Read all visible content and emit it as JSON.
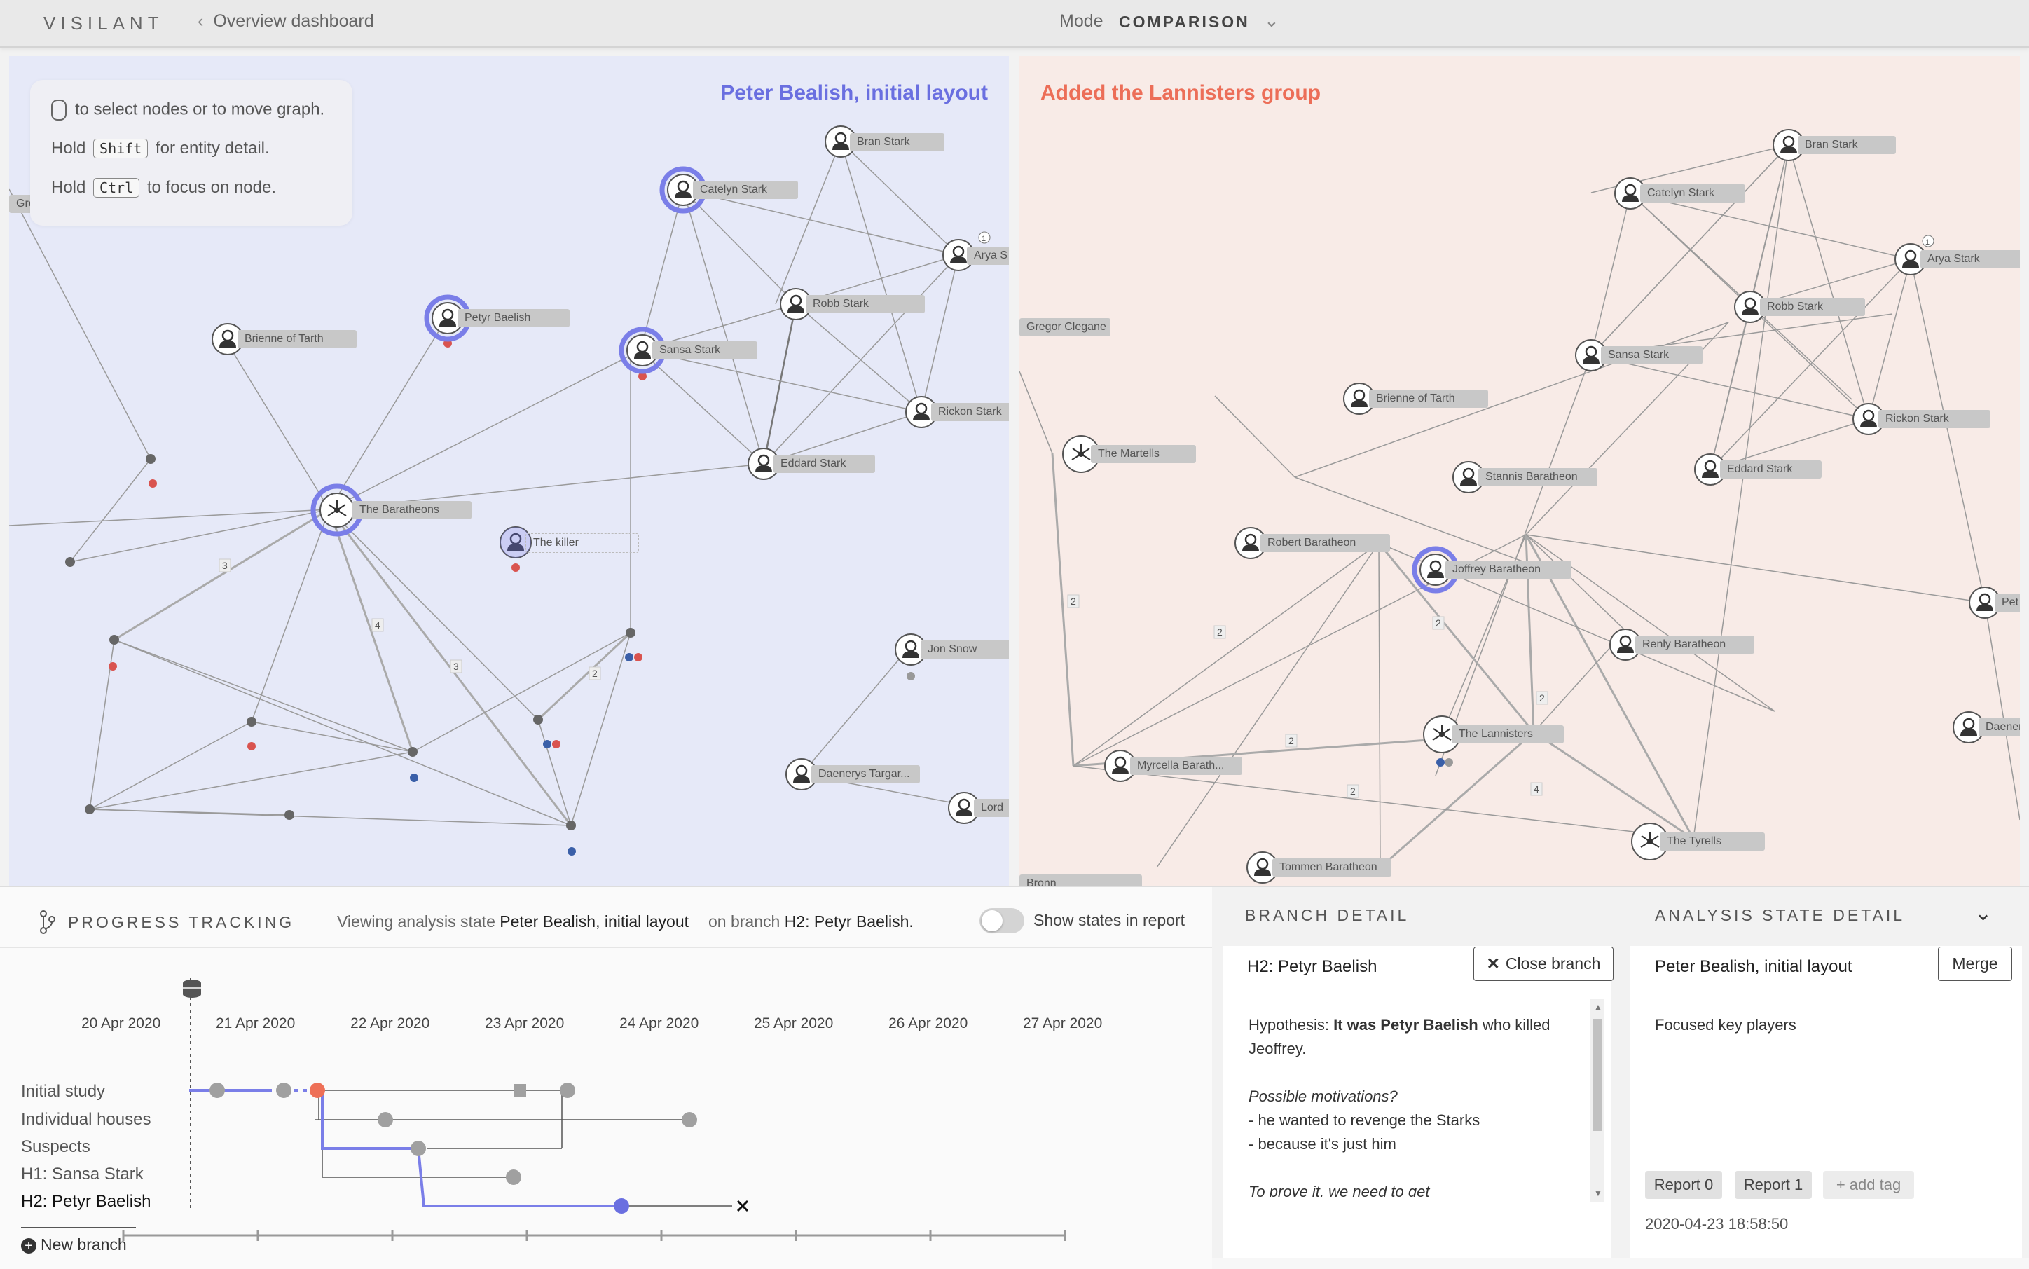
{
  "app": {
    "logo": "VISILANT",
    "back_label": "Overview dashboard",
    "mode_label": "Mode",
    "mode_value": "COMPARISON"
  },
  "left_panel": {
    "title": "Peter Bealish, initial layout",
    "help": {
      "line1_suffix": "to select nodes or to move graph.",
      "line2_prefix": "Hold",
      "line2_key": "Shift",
      "line2_suffix": "for entity detail.",
      "line3_prefix": "Hold",
      "line3_key": "Ctrl",
      "line3_suffix": "to focus on node."
    },
    "nodes": [
      "Bran Stark",
      "Catelyn Stark",
      "Arya S",
      "Petyr Baelish",
      "Brienne of Tarth",
      "Robb Stark",
      "Sansa Stark",
      "Rickon Stark",
      "Eddard Stark",
      "The Baratheons",
      "The killer",
      "Jon Snow",
      "Daenerys Targar...",
      "Lord",
      "Gregor Clegane"
    ],
    "edge_counts": [
      "3",
      "4",
      "3",
      "2"
    ],
    "badge": "1"
  },
  "right_panel": {
    "title": "Added the Lannisters group",
    "nodes": [
      "Bran Stark",
      "Catelyn Stark",
      "Arya Stark",
      "Robb Stark",
      "Sansa Stark",
      "Gregor Clegane",
      "Brienne of Tarth",
      "Rickon Stark",
      "The Martells",
      "Stannis Baratheon",
      "Eddard Stark",
      "Robert Baratheon",
      "Joffrey Baratheon",
      "Pet",
      "Renly Baratheon",
      "The Lannisters",
      "Daener",
      "Myrcella Barath...",
      "The Tyrells",
      "Tommen Baratheon",
      "Bronn"
    ],
    "edge_counts": [
      "2",
      "2",
      "2",
      "2",
      "2",
      "4",
      "2"
    ],
    "badge": "1"
  },
  "progress": {
    "title": "PROGRESS TRACKING",
    "viewing_prefix": "Viewing analysis state",
    "viewing_state": "Peter Bealish, initial layout",
    "branch_prefix": "on branch",
    "branch_name": "H2: Petyr Baelish.",
    "toggle_label": "Show states in report",
    "toggle_on": false,
    "dates": [
      "20 Apr 2020",
      "21 Apr 2020",
      "22 Apr 2020",
      "23 Apr 2020",
      "24 Apr 2020",
      "25 Apr 2020",
      "26 Apr 2020",
      "27 Apr 2020"
    ],
    "branches": [
      "Initial study",
      "Individual houses",
      "Suspects",
      "H1: Sansa Stark",
      "H2: Petyr Baelish"
    ],
    "new_branch": "New branch"
  },
  "branch_detail": {
    "title": "BRANCH DETAIL",
    "branch_name": "H2: Petyr Baelish",
    "close_label": "Close branch",
    "hyp_prefix": "Hypothesis: ",
    "hyp_bold": "It was Petyr Baelish",
    "hyp_suffix": " who killed",
    "hyp_line2": "Jeoffrey.",
    "motivations_title": "Possible motivations?",
    "motivation1": "- he wanted to revenge the Starks",
    "motivation2": "- because it's just him",
    "prove": "To prove it, we need to get"
  },
  "analysis_detail": {
    "title": "ANALYSIS STATE DETAIL",
    "state_name": "Peter Bealish, initial layout",
    "merge_label": "Merge",
    "description": "Focused key players",
    "tags": [
      "Report 0",
      "Report 1"
    ],
    "add_tag": "+ add tag",
    "timestamp": "2020-04-23 18:58:50"
  },
  "colors": {
    "accent_blue": "#6a6fe0",
    "accent_red": "#ec6e58",
    "left_bg": "#e6e9f8",
    "right_bg": "#f8ebe7"
  },
  "icons": [
    "mouse-icon",
    "chevron-left-icon",
    "chevron-down-icon",
    "branch-icon",
    "database-icon",
    "close-icon",
    "plus-circle-icon",
    "person-icon",
    "group-icon"
  ]
}
